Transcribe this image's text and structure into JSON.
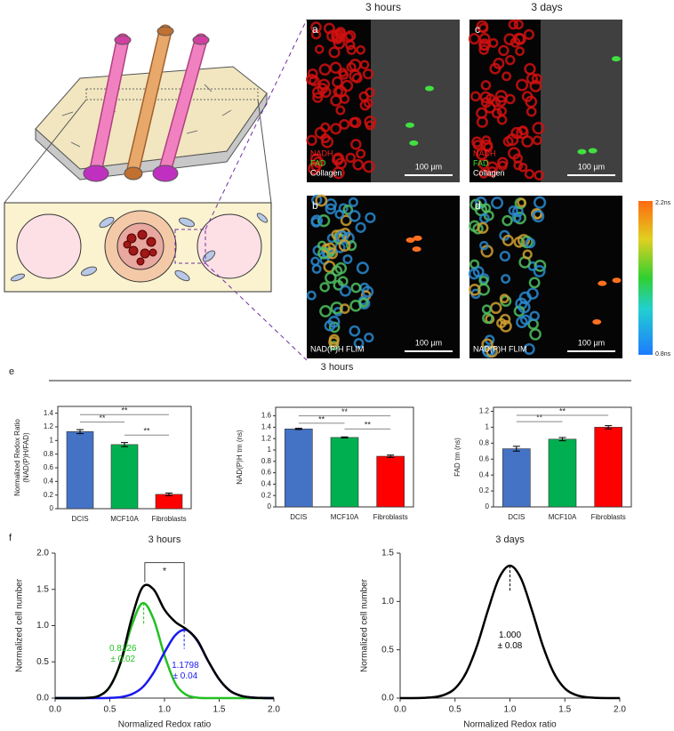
{
  "images": {
    "columns": [
      "3 hours",
      "3 days"
    ],
    "panels": [
      {
        "label": "a",
        "channels": [
          {
            "text": "NADH",
            "color": "#ff2020"
          },
          {
            "text": "FAD",
            "color": "#30e030"
          },
          {
            "text": "Collagen",
            "color": "#ffffff"
          }
        ],
        "scale": "100 µm"
      },
      {
        "label": "b",
        "channels": [
          {
            "text": "NAD(P)H FLIM",
            "color": "#ffffff"
          }
        ],
        "scale": "100 µm"
      },
      {
        "label": "c",
        "channels": [
          {
            "text": "NADH",
            "color": "#ff2020"
          },
          {
            "text": "FAD",
            "color": "#30e030"
          },
          {
            "text": "Collagen",
            "color": "#ffffff"
          }
        ],
        "scale": "100 µm"
      },
      {
        "label": "d",
        "channels": [
          {
            "text": "NAD(P)H FLIM",
            "color": "#ffffff"
          }
        ],
        "scale": "100 µm"
      }
    ],
    "colorbar": [
      "2.2ns",
      "0.8ns"
    ]
  },
  "figure": {
    "panel_e": "e",
    "panel_f": "f",
    "heading_e": "3 hours"
  },
  "chart_data": [
    {
      "type": "bar",
      "ylabel": [
        "Normalized Redox Ratio",
        "(NAD(P)H/FAD)"
      ],
      "categories": [
        "DCIS",
        "MCF10A",
        "Fibroblasts"
      ],
      "values": [
        1.13,
        0.94,
        0.21
      ],
      "errors": [
        0.03,
        0.03,
        0.02
      ],
      "colors": [
        "#4472c4",
        "#00b050",
        "#ff0000"
      ],
      "ylim": [
        0,
        1.5
      ],
      "yticks": [
        0,
        0.2,
        0.4,
        0.6,
        0.8,
        1,
        1.2,
        1.4
      ],
      "significance": [
        "**",
        "**",
        "**"
      ]
    },
    {
      "type": "bar",
      "ylabel": "NAD(P)H τm (ns)",
      "categories": [
        "DCIS",
        "MCF10A",
        "Fibroblasts"
      ],
      "values": [
        1.37,
        1.22,
        0.89
      ],
      "errors": [
        0.01,
        0.01,
        0.02
      ],
      "colors": [
        "#4472c4",
        "#00b050",
        "#ff0000"
      ],
      "ylim": [
        0,
        1.75
      ],
      "yticks": [
        0,
        0.2,
        0.4,
        0.6,
        0.8,
        1,
        1.2,
        1.4,
        1.6
      ],
      "significance": [
        "**",
        "**",
        "**"
      ]
    },
    {
      "type": "bar",
      "ylabel": "FAD τm (ns)",
      "categories": [
        "DCIS",
        "MCF10A",
        "Fibroblasts"
      ],
      "values": [
        0.73,
        0.85,
        1.0
      ],
      "errors": [
        0.03,
        0.02,
        0.02
      ],
      "colors": [
        "#4472c4",
        "#00b050",
        "#ff0000"
      ],
      "ylim": [
        0,
        1.25
      ],
      "yticks": [
        0,
        0.2,
        0.4,
        0.6,
        0.8,
        1,
        1.2
      ],
      "significance": [
        "**",
        "**"
      ]
    },
    {
      "type": "line",
      "title": "3 hours",
      "xlabel": "Normalized Redox ratio",
      "ylabel": "Normalized cell number",
      "x": [
        0,
        0.1,
        0.2,
        0.3,
        0.4,
        0.5,
        0.6,
        0.7,
        0.8,
        0.9,
        1.0,
        1.1,
        1.2,
        1.3,
        1.4,
        1.5,
        1.6,
        1.7,
        1.8,
        1.9,
        2.0
      ],
      "xlim": [
        0,
        2
      ],
      "xticks": [
        {
          "value": 0,
          "label": "0.0"
        },
        0.5,
        {
          "value": 1,
          "label": "1.0"
        },
        1.5,
        {
          "value": 2,
          "label": "2.0"
        }
      ],
      "ylim": [
        0,
        2
      ],
      "yticks": [
        {
          "value": 0,
          "label": "0.0"
        },
        0.5,
        {
          "value": 1,
          "label": "1.0"
        },
        1.5,
        {
          "value": 2,
          "label": "2.0"
        }
      ],
      "series": [
        {
          "color": "#22c022",
          "values": [
            0,
            0,
            0,
            0.004,
            0.031,
            0.155,
            0.49,
            1.0,
            1.31,
            1.09,
            0.59,
            0.2,
            0.045,
            0.006,
            0,
            0,
            0,
            0,
            0,
            0,
            0
          ]
        },
        {
          "color": "#1a1aee",
          "values": [
            0,
            0,
            0,
            0,
            0,
            0.003,
            0.014,
            0.053,
            0.15,
            0.35,
            0.63,
            0.87,
            0.94,
            0.79,
            0.51,
            0.26,
            0.1,
            0.032,
            0.008,
            0.002,
            0
          ]
        },
        {
          "color": "#000000",
          "values": [
            0,
            0,
            0,
            0.004,
            0.031,
            0.158,
            0.5,
            1.1,
            1.53,
            1.5,
            1.22,
            1.05,
            0.95,
            0.8,
            0.51,
            0.26,
            0.1,
            0.032,
            0.008,
            0.002,
            0
          ]
        }
      ],
      "annotations": [
        {
          "lines": [
            "0.8126",
            "± 0.02"
          ],
          "color": "#22c022"
        },
        {
          "lines": [
            "1.1798",
            "± 0.04"
          ],
          "color": "#1a1aee"
        }
      ],
      "significance": [
        "*"
      ]
    },
    {
      "type": "line",
      "title": "3 days",
      "xlabel": "Normalized Redox ratio",
      "ylabel": "Normalized cell number",
      "x": [
        0,
        0.1,
        0.2,
        0.3,
        0.4,
        0.5,
        0.6,
        0.7,
        0.8,
        0.9,
        1.0,
        1.1,
        1.2,
        1.3,
        1.4,
        1.5,
        1.6,
        1.7,
        1.8,
        1.9,
        2.0
      ],
      "xlim": [
        0,
        2
      ],
      "xticks": [
        {
          "value": 0,
          "label": "0.0"
        },
        0.5,
        {
          "value": 1,
          "label": "1.0"
        },
        1.5,
        {
          "value": 2,
          "label": "2.0"
        }
      ],
      "ylim": [
        0,
        1.5
      ],
      "yticks": [
        {
          "value": 0,
          "label": "0.0"
        },
        0.5,
        {
          "value": 1,
          "label": "1.0"
        },
        1.5
      ],
      "series": [
        {
          "color": "#000000",
          "values": [
            0,
            0,
            0.002,
            0.009,
            0.033,
            0.1,
            0.26,
            0.54,
            0.91,
            1.24,
            1.37,
            1.24,
            0.91,
            0.54,
            0.26,
            0.1,
            0.033,
            0.009,
            0.002,
            0,
            0
          ]
        }
      ],
      "annotations": [
        {
          "lines": [
            "1.000",
            "± 0.08"
          ],
          "color": "#000000"
        }
      ],
      "significance": []
    }
  ]
}
